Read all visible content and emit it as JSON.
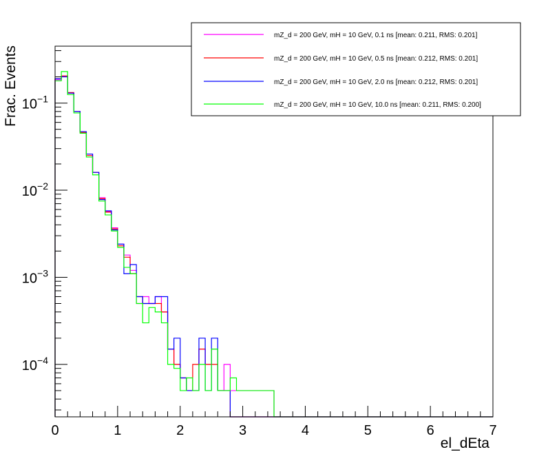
{
  "chart_data": {
    "type": "line",
    "style": "step-histogram",
    "xlabel": "el_dEta",
    "ylabel": "Frac. Events",
    "xlim": [
      0,
      7
    ],
    "ylim": [
      2.5e-05,
      0.45
    ],
    "yscale": "log",
    "grid": false,
    "legend_position": "top-right",
    "x_ticks": [
      "0",
      "1",
      "2",
      "3",
      "4",
      "5",
      "6",
      "7"
    ],
    "y_ticks": [
      {
        "value": 0.1,
        "base": "10",
        "exp": "−1"
      },
      {
        "value": 0.01,
        "base": "10",
        "exp": "−2"
      },
      {
        "value": 0.001,
        "base": "10",
        "exp": "−3"
      },
      {
        "value": 0.0001,
        "base": "10",
        "exp": "−4"
      }
    ],
    "bin_width": 0.1,
    "series": [
      {
        "name": "mZ_d = 200 GeV, mH = 10 GeV, 0.1 ns [mean: 0.211, RMS: 0.201]",
        "color": "#ff00ff",
        "bin_starts": [
          0.0,
          0.1,
          0.2,
          0.3,
          0.4,
          0.5,
          0.6,
          0.7,
          0.8,
          0.9,
          1.0,
          1.1,
          1.2,
          1.3,
          1.4,
          1.5,
          1.6,
          1.7,
          1.8,
          1.9,
          2.0,
          2.1,
          2.2,
          2.3,
          2.4,
          2.5,
          2.6,
          2.7,
          2.8,
          2.9,
          3.0,
          3.1,
          3.2,
          3.3,
          3.4
        ],
        "values": [
          0.185,
          0.205,
          0.13,
          0.08,
          0.047,
          0.026,
          0.016,
          0.0082,
          0.0057,
          0.0037,
          0.0024,
          0.0018,
          0.0012,
          0.0005,
          0.0006,
          0.0005,
          0.0006,
          0.0004,
          0.00015,
          0.0001,
          7e-05,
          5e-05,
          5e-05,
          0.00015,
          0.0001,
          0.00015,
          5e-05,
          0.0001,
          5e-05,
          5e-05,
          5e-05,
          5e-05,
          5e-05,
          5e-05,
          5e-05
        ]
      },
      {
        "name": "mZ_d = 200 GeV, mH = 10 GeV, 0.5 ns [mean: 0.212, RMS: 0.201]",
        "color": "#ff0000",
        "bin_starts": [
          0.0,
          0.1,
          0.2,
          0.3,
          0.4,
          0.5,
          0.6,
          0.7,
          0.8,
          0.9,
          1.0,
          1.1,
          1.2,
          1.3,
          1.4,
          1.5,
          1.6,
          1.7,
          1.8,
          1.9,
          2.0,
          2.1,
          2.2,
          2.3,
          2.4,
          2.5,
          2.6,
          2.7
        ],
        "values": [
          0.19,
          0.205,
          0.132,
          0.08,
          0.046,
          0.025,
          0.016,
          0.008,
          0.0056,
          0.0036,
          0.0023,
          0.0017,
          0.0011,
          0.0006,
          0.0005,
          0.0005,
          0.0005,
          0.0004,
          0.00015,
          0.0001,
          7e-05,
          5e-05,
          0.0001,
          0.00015,
          0.0001,
          0.0001,
          5e-05,
          5e-05
        ]
      },
      {
        "name": "mZ_d = 200 GeV, mH = 10 GeV, 2.0 ns [mean: 0.212, RMS: 0.201]",
        "color": "#0000ff",
        "bin_starts": [
          0.0,
          0.1,
          0.2,
          0.3,
          0.4,
          0.5,
          0.6,
          0.7,
          0.8,
          0.9,
          1.0,
          1.1,
          1.2,
          1.3,
          1.4,
          1.5,
          1.6,
          1.7,
          1.8,
          1.9,
          2.0,
          2.1,
          2.2,
          2.3,
          2.4,
          2.5,
          2.6,
          2.7
        ],
        "values": [
          0.19,
          0.2,
          0.13,
          0.08,
          0.047,
          0.026,
          0.016,
          0.0078,
          0.0058,
          0.0035,
          0.0024,
          0.0011,
          0.0014,
          0.0006,
          0.0005,
          0.0005,
          0.0006,
          0.0006,
          0.00015,
          0.0002,
          7e-05,
          5e-05,
          5e-05,
          0.0002,
          5e-05,
          0.0002,
          5e-05,
          5e-05
        ]
      },
      {
        "name": "mZ_d = 200 GeV, mH = 10 GeV, 10.0 ns [mean: 0.211, RMS: 0.200]",
        "color": "#00ff00",
        "bin_starts": [
          0.0,
          0.1,
          0.2,
          0.3,
          0.4,
          0.5,
          0.6,
          0.7,
          0.8,
          0.9,
          1.0,
          1.1,
          1.2,
          1.3,
          1.4,
          1.5,
          1.6,
          1.7,
          1.8,
          1.9,
          2.0,
          2.1,
          2.2,
          2.3,
          2.4,
          2.5,
          2.6,
          2.7,
          2.8,
          2.9,
          3.0,
          3.1,
          3.2,
          3.3,
          3.4
        ],
        "values": [
          0.18,
          0.23,
          0.125,
          0.077,
          0.045,
          0.024,
          0.015,
          0.0075,
          0.0052,
          0.0034,
          0.0022,
          0.0013,
          0.0011,
          0.0005,
          0.0003,
          0.00045,
          0.0004,
          0.0003,
          0.0001,
          9e-05,
          5e-05,
          7e-05,
          5e-05,
          0.0001,
          5e-05,
          0.00015,
          5e-05,
          5e-05,
          7e-05,
          5e-05,
          5e-05,
          5e-05,
          5e-05,
          5e-05,
          5e-05
        ]
      }
    ]
  }
}
